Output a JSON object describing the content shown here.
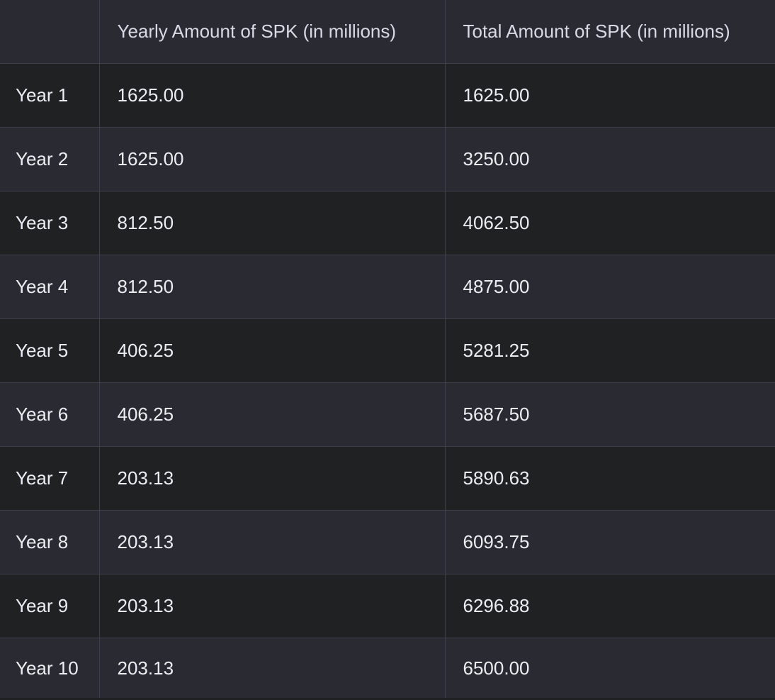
{
  "table": {
    "headers": [
      "",
      "Yearly Amount of SPK (in millions)",
      "Total Amount of SPK (in millions)"
    ],
    "rows": [
      [
        "Year 1",
        "1625.00",
        "1625.00"
      ],
      [
        "Year 2",
        "1625.00",
        "3250.00"
      ],
      [
        "Year 3",
        "812.50",
        "4062.50"
      ],
      [
        "Year 4",
        "812.50",
        "4875.00"
      ],
      [
        "Year 5",
        "406.25",
        "5281.25"
      ],
      [
        "Year 6",
        "406.25",
        "5687.50"
      ],
      [
        "Year 7",
        "203.13",
        "5890.63"
      ],
      [
        "Year 8",
        "203.13",
        "6093.75"
      ],
      [
        "Year 9",
        "203.13",
        "6296.88"
      ],
      [
        "Year 10",
        "203.13",
        "6500.00"
      ]
    ]
  }
}
